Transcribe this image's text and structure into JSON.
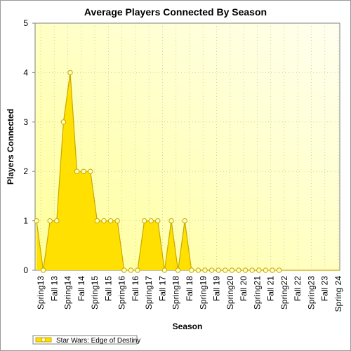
{
  "chart_data": {
    "type": "area",
    "title": "Average Players Connected By Season",
    "xlabel": "Season",
    "ylabel": "Players Connected",
    "ylim": [
      0,
      5
    ],
    "yticks": [
      "0",
      "1",
      "2",
      "3",
      "4",
      "5"
    ],
    "x_tick_labels": [
      "Spring13",
      "Fall 13",
      "Spring14",
      "Fall 14",
      "Spring15",
      "Fall 15",
      "Spring16",
      "Fall 16",
      "Spring17",
      "Fall 17",
      "Spring18",
      "Fall 18",
      "Spring19",
      "Fall 19",
      "Spring20",
      "Fall 20",
      "Spring21",
      "Fall 21",
      "Spring22",
      "Fall 22",
      "Spring23",
      "Fall 23",
      "Spring 24"
    ],
    "grid": true,
    "legend_position": "bottom-left",
    "series": [
      {
        "name": "Star Wars: Edge of Destiny",
        "color": "#ffe000",
        "line_color": "#c8a800",
        "values": [
          1,
          0,
          1,
          1,
          3,
          4,
          2,
          2,
          2,
          1,
          1,
          1,
          1,
          0,
          0,
          0,
          1,
          1,
          1,
          0,
          1,
          0,
          1,
          0,
          0,
          0,
          0,
          0,
          0,
          0,
          0,
          0,
          0,
          0,
          0,
          0,
          0,
          0,
          0,
          0,
          0,
          0,
          0,
          0,
          0,
          0
        ]
      }
    ],
    "marker_count": 37
  }
}
